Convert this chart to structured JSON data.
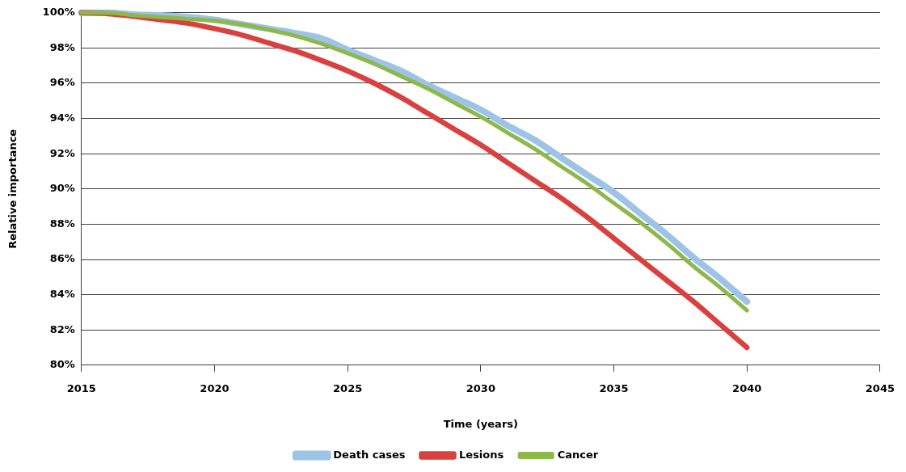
{
  "chart_data": {
    "type": "line",
    "xlabel": "Time (years)",
    "ylabel": "Relative importance",
    "x": [
      2015,
      2016,
      2017,
      2018,
      2019,
      2020,
      2021,
      2022,
      2023,
      2024,
      2025,
      2026,
      2027,
      2028,
      2029,
      2030,
      2031,
      2032,
      2033,
      2034,
      2035,
      2036,
      2037,
      2038,
      2039,
      2040
    ],
    "series": [
      {
        "name": "Death cases",
        "color": "#9dc3e6",
        "values": [
          100,
          100,
          99.9,
          99.85,
          99.75,
          99.6,
          99.35,
          99.1,
          98.85,
          98.55,
          97.9,
          97.3,
          96.7,
          95.9,
          95.2,
          94.5,
          93.6,
          92.8,
          91.8,
          90.8,
          89.8,
          88.6,
          87.4,
          86.1,
          84.9,
          83.6
        ]
      },
      {
        "name": "Lesions",
        "color": "#d9403e",
        "values": [
          100,
          99.95,
          99.8,
          99.6,
          99.4,
          99.1,
          98.75,
          98.3,
          97.85,
          97.3,
          96.7,
          96.0,
          95.2,
          94.3,
          93.4,
          92.5,
          91.5,
          90.5,
          89.5,
          88.4,
          87.2,
          86.0,
          84.8,
          83.6,
          82.3,
          81.0
        ]
      },
      {
        "name": "Cancer",
        "color": "#8db84a",
        "values": [
          100,
          100,
          99.85,
          99.75,
          99.65,
          99.55,
          99.35,
          99.05,
          98.7,
          98.25,
          97.7,
          97.1,
          96.4,
          95.7,
          94.9,
          94.1,
          93.2,
          92.3,
          91.3,
          90.3,
          89.2,
          88.1,
          86.9,
          85.6,
          84.4,
          83.1
        ]
      }
    ],
    "xlim": [
      2015,
      2045
    ],
    "xticks": [
      2015,
      2020,
      2025,
      2030,
      2035,
      2040,
      2045
    ],
    "ylim": [
      80,
      100
    ],
    "yticks": [
      {
        "value": 80,
        "label": "80%"
      },
      {
        "value": 82,
        "label": "82%"
      },
      {
        "value": 84,
        "label": "84%"
      },
      {
        "value": 86,
        "label": "86%"
      },
      {
        "value": 88,
        "label": "88%"
      },
      {
        "value": 90,
        "label": "90%"
      },
      {
        "value": 92,
        "label": "92%"
      },
      {
        "value": 94,
        "label": "94%"
      },
      {
        "value": 96,
        "label": "96%"
      },
      {
        "value": 98,
        "label": "98%"
      },
      {
        "value": 100,
        "label": "100%"
      }
    ],
    "grid": "y",
    "legend": "bottom",
    "marker": "none",
    "line_style": "solid"
  }
}
